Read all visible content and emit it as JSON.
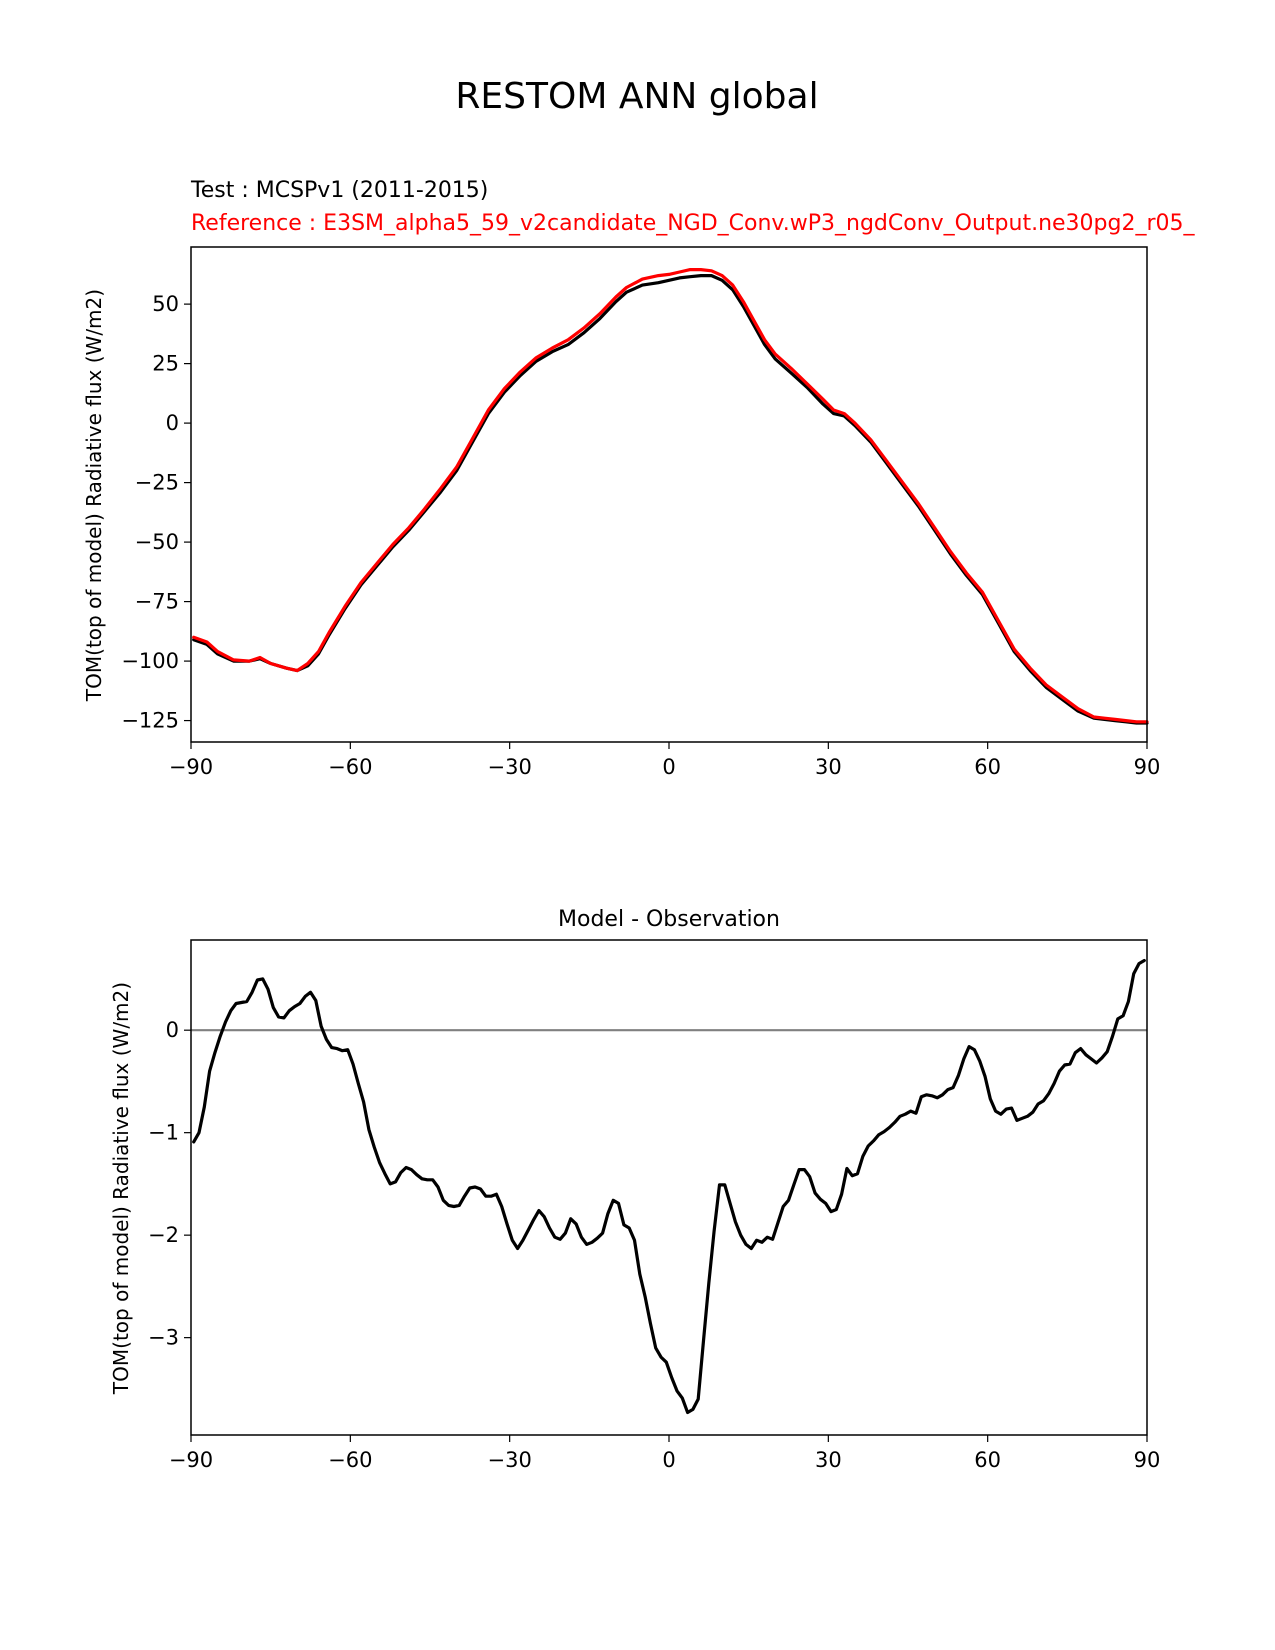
{
  "suptitle": "RESTOM ANN global",
  "chart_data": [
    {
      "type": "line",
      "title_test": "Test : MCSPv1 (2011-2015)",
      "title_reference": "Reference : E3SM_alpha5_59_v2candidate_NGD_Conv.wP3_ngdConv_Output.ne30pg2_r05_",
      "xlabel": "",
      "ylabel": "TOM(top of model) Radiative flux (W/m2)",
      "xlim": [
        -90,
        90
      ],
      "ylim": [
        -134,
        74
      ],
      "xticks": [
        -90,
        -60,
        -30,
        0,
        30,
        60,
        90
      ],
      "xtick_labels": [
        "−90",
        "−60",
        "−30",
        "0",
        "30",
        "60",
        "90"
      ],
      "yticks": [
        -125,
        -100,
        -75,
        -50,
        -25,
        0,
        25,
        50
      ],
      "ytick_labels": [
        "−125",
        "−100",
        "−75",
        "−50",
        "−25",
        "0",
        "25",
        "50"
      ],
      "series": [
        {
          "name": "Test",
          "color": "#000000",
          "x": [
            -89.5,
            -87,
            -85,
            -82,
            -79,
            -77,
            -75,
            -72,
            -70,
            -68,
            -66,
            -64,
            -61,
            -58,
            -55,
            -52,
            -49,
            -46,
            -43,
            -40,
            -37,
            -34,
            -31,
            -28,
            -25,
            -22,
            -19,
            -16,
            -13,
            -10,
            -8,
            -5,
            -2,
            0,
            2,
            4,
            6,
            8,
            10,
            12,
            14,
            16,
            18,
            20,
            23,
            26,
            29,
            31,
            33,
            35,
            38,
            41,
            44,
            47,
            50,
            53,
            56,
            59,
            62,
            65,
            68,
            71,
            74,
            77,
            80,
            82,
            84,
            86,
            88,
            90
          ],
          "y": [
            -91,
            -93,
            -97,
            -100,
            -100,
            -99,
            -101,
            -103,
            -104,
            -102,
            -97,
            -89,
            -78,
            -68,
            -60,
            -52,
            -45,
            -37,
            -29,
            -20,
            -8,
            4,
            13,
            20,
            26,
            30,
            33,
            38,
            44,
            51,
            55,
            58,
            59,
            60,
            61,
            61.5,
            62,
            62,
            60,
            56,
            49,
            41,
            33,
            27,
            21,
            15,
            8,
            4,
            3,
            -1,
            -8,
            -17,
            -26,
            -35,
            -45,
            -55,
            -64,
            -72,
            -84,
            -96,
            -104,
            -111,
            -116,
            -121,
            -124,
            -124.5,
            -125,
            -125.5,
            -126,
            -126
          ]
        },
        {
          "name": "Reference",
          "color": "#ff0000",
          "x": [
            -89.5,
            -87,
            -85,
            -82,
            -79,
            -77,
            -75,
            -72,
            -70,
            -68,
            -66,
            -64,
            -61,
            -58,
            -55,
            -52,
            -49,
            -46,
            -43,
            -40,
            -37,
            -34,
            -31,
            -28,
            -25,
            -22,
            -19,
            -16,
            -13,
            -10,
            -8,
            -5,
            -2,
            0,
            2,
            4,
            6,
            8,
            10,
            12,
            14,
            16,
            18,
            20,
            23,
            26,
            29,
            31,
            33,
            35,
            38,
            41,
            44,
            47,
            50,
            53,
            56,
            59,
            62,
            65,
            68,
            71,
            74,
            77,
            80,
            82,
            84,
            86,
            88,
            90
          ],
          "y": [
            -90,
            -92,
            -96,
            -99.5,
            -100,
            -98.5,
            -101,
            -103,
            -104,
            -101,
            -96,
            -88,
            -77,
            -67,
            -59,
            -51,
            -44,
            -36,
            -27.5,
            -18.5,
            -6.5,
            5.5,
            14.5,
            21.5,
            27.5,
            31.5,
            35,
            40,
            46,
            53,
            57,
            60.5,
            62,
            62.5,
            63.5,
            64.5,
            64.5,
            64,
            62,
            58,
            51,
            43,
            35,
            29,
            23,
            16.5,
            10,
            5.5,
            4,
            0,
            -7,
            -16,
            -25,
            -34,
            -44,
            -54,
            -63,
            -71,
            -83,
            -95,
            -103,
            -110,
            -115,
            -120,
            -123.5,
            -124,
            -124.5,
            -125,
            -125.5,
            -125.5
          ]
        }
      ]
    },
    {
      "type": "line",
      "title": "Model - Observation",
      "xlabel": "",
      "ylabel": "TOM(top of model) Radiative flux (W/m2)",
      "xlim": [
        -90,
        90
      ],
      "ylim": [
        -3.95,
        0.88
      ],
      "xticks": [
        -90,
        -60,
        -30,
        0,
        30,
        60,
        90
      ],
      "xtick_labels": [
        "−90",
        "−60",
        "−30",
        "0",
        "30",
        "60",
        "90"
      ],
      "yticks": [
        -3,
        -2,
        -1,
        0
      ],
      "ytick_labels": [
        "−3",
        "−2",
        "−1",
        "0"
      ],
      "zero_line": 0,
      "series": [
        {
          "name": "Model - Observation",
          "color": "#000000",
          "x": [
            -89.5,
            -88.5,
            -87.5,
            -86.5,
            -85.5,
            -84.5,
            -83.5,
            -82.5,
            -81.5,
            -80.5,
            -79.5,
            -78.5,
            -77.5,
            -76.5,
            -75.5,
            -74.5,
            -73.5,
            -72.5,
            -71.5,
            -70.5,
            -69.5,
            -68.5,
            -67.5,
            -66.5,
            -65.5,
            -64.5,
            -63.5,
            -62.5,
            -61.5,
            -60.5,
            -59.5,
            -58.5,
            -57.5,
            -56.5,
            -55.5,
            -54.5,
            -53.5,
            -52.5,
            -51.5,
            -50.5,
            -49.5,
            -48.5,
            -47.5,
            -46.5,
            -45.5,
            -44.5,
            -43.5,
            -42.5,
            -41.5,
            -40.5,
            -39.5,
            -38.5,
            -37.5,
            -36.5,
            -35.5,
            -34.5,
            -33.5,
            -32.5,
            -31.5,
            -30.5,
            -29.5,
            -28.5,
            -27.5,
            -26.5,
            -25.5,
            -24.5,
            -23.5,
            -22.5,
            -21.5,
            -20.5,
            -19.5,
            -18.5,
            -17.5,
            -16.5,
            -15.5,
            -14.5,
            -13.5,
            -12.5,
            -11.5,
            -10.5,
            -9.5,
            -8.5,
            -7.5,
            -6.5,
            -5.5,
            -4.5,
            -3.5,
            -2.5,
            -1.5,
            -0.5,
            0.5,
            1.5,
            2.5,
            3.5,
            4.5,
            5.5,
            6.5,
            7.5,
            8.5,
            9.5,
            10.5,
            11.5,
            12.5,
            13.5,
            14.5,
            15.5,
            16.5,
            17.5,
            18.5,
            19.5,
            20.5,
            21.5,
            22.5,
            23.5,
            24.5,
            25.5,
            26.5,
            27.5,
            28.5,
            29.5,
            30.5,
            31.5,
            32.5,
            33.5,
            34.5,
            35.5,
            36.5,
            37.5,
            38.5,
            39.5,
            40.5,
            41.5,
            42.5,
            43.5,
            44.5,
            45.5,
            46.5,
            47.5,
            48.5,
            49.5,
            50.5,
            51.5,
            52.5,
            53.5,
            54.5,
            55.5,
            56.5,
            57.5,
            58.5,
            59.5,
            60.5,
            61.5,
            62.5,
            63.5,
            64.5,
            65.5,
            66.5,
            67.5,
            68.5,
            69.5,
            70.5,
            71.5,
            72.5,
            73.5,
            74.5,
            75.5,
            76.5,
            77.5,
            78.5,
            79.5,
            80.5,
            81.5,
            82.5,
            83.5,
            84.5,
            85.5,
            86.5,
            87.5,
            88.5,
            89.5
          ],
          "y": [
            -1.09,
            -1.0,
            -0.75,
            -0.4,
            -0.22,
            -0.06,
            0.08,
            0.19,
            0.26,
            0.27,
            0.28,
            0.37,
            0.49,
            0.5,
            0.4,
            0.22,
            0.13,
            0.12,
            0.19,
            0.23,
            0.26,
            0.33,
            0.37,
            0.29,
            0.04,
            -0.09,
            -0.17,
            -0.18,
            -0.2,
            -0.19,
            -0.33,
            -0.52,
            -0.7,
            -0.97,
            -1.14,
            -1.29,
            -1.4,
            -1.5,
            -1.48,
            -1.39,
            -1.34,
            -1.36,
            -1.41,
            -1.45,
            -1.46,
            -1.46,
            -1.53,
            -1.66,
            -1.71,
            -1.72,
            -1.71,
            -1.62,
            -1.54,
            -1.53,
            -1.55,
            -1.62,
            -1.62,
            -1.6,
            -1.72,
            -1.89,
            -2.05,
            -2.13,
            -2.05,
            -1.95,
            -1.85,
            -1.76,
            -1.82,
            -1.93,
            -2.02,
            -2.04,
            -1.98,
            -1.84,
            -1.89,
            -2.02,
            -2.09,
            -2.07,
            -2.03,
            -1.98,
            -1.79,
            -1.66,
            -1.69,
            -1.9,
            -1.93,
            -2.05,
            -2.38,
            -2.6,
            -2.86,
            -3.1,
            -3.19,
            -3.24,
            -3.39,
            -3.52,
            -3.59,
            -3.73,
            -3.7,
            -3.6,
            -3.03,
            -2.47,
            -1.96,
            -1.51,
            -1.51,
            -1.69,
            -1.87,
            -2.0,
            -2.09,
            -2.13,
            -2.05,
            -2.07,
            -2.02,
            -2.04,
            -1.88,
            -1.72,
            -1.66,
            -1.51,
            -1.36,
            -1.36,
            -1.43,
            -1.59,
            -1.65,
            -1.69,
            -1.77,
            -1.75,
            -1.6,
            -1.35,
            -1.42,
            -1.4,
            -1.23,
            -1.13,
            -1.08,
            -1.02,
            -0.99,
            -0.95,
            -0.9,
            -0.84,
            -0.82,
            -0.79,
            -0.81,
            -0.65,
            -0.63,
            -0.64,
            -0.66,
            -0.63,
            -0.58,
            -0.56,
            -0.44,
            -0.28,
            -0.16,
            -0.19,
            -0.3,
            -0.45,
            -0.67,
            -0.79,
            -0.82,
            -0.77,
            -0.76,
            -0.88,
            -0.86,
            -0.84,
            -0.8,
            -0.72,
            -0.69,
            -0.62,
            -0.52,
            -0.4,
            -0.34,
            -0.33,
            -0.22,
            -0.18,
            -0.24,
            -0.28,
            -0.32,
            -0.27,
            -0.21,
            -0.06,
            0.11,
            0.14,
            0.28,
            0.55,
            0.65,
            0.68
          ]
        }
      ]
    }
  ]
}
